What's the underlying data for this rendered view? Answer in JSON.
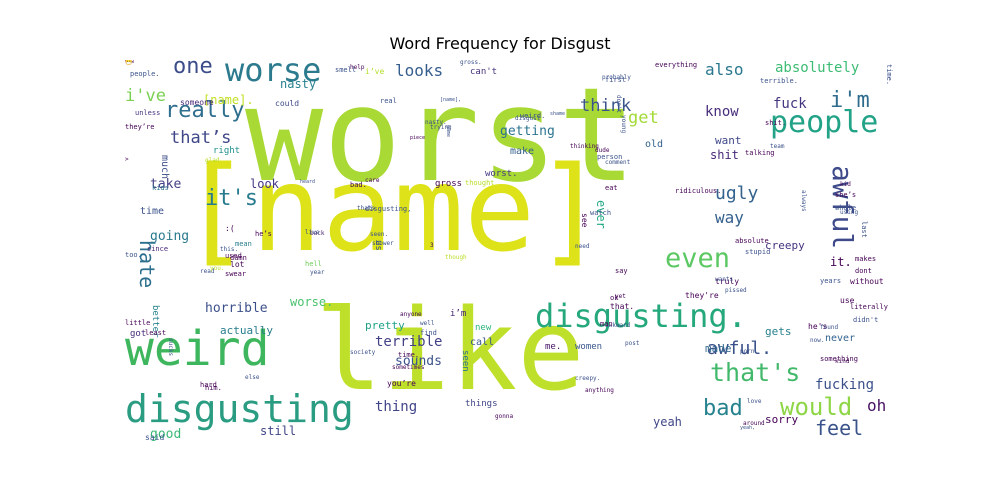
{
  "chart_data": {
    "type": "wordcloud",
    "title": "Word Frequency for Disgust",
    "words": [
      {
        "text": "worst",
        "size": 130,
        "color": "#a9d934"
      },
      {
        "text": "[name]",
        "size": 118,
        "color": "#dde318"
      },
      {
        "text": "like",
        "size": 112,
        "color": "#bfe02a"
      },
      {
        "text": "weird",
        "size": 48,
        "color": "#3db65e"
      },
      {
        "text": "disgusting",
        "size": 38,
        "color": "#2a9c82"
      },
      {
        "text": "disgusting.",
        "size": 32,
        "color": "#25a87c"
      },
      {
        "text": "worse",
        "size": 32,
        "color": "#2c7a8e"
      },
      {
        "text": "people",
        "size": 30,
        "color": "#22a286"
      },
      {
        "text": "awful",
        "size": 28,
        "color": "#3e4a89"
      },
      {
        "text": "even",
        "size": 27,
        "color": "#5cc863"
      },
      {
        "text": "that's",
        "size": 25,
        "color": "#41b86a"
      },
      {
        "text": "would",
        "size": 24,
        "color": "#8ed645"
      },
      {
        "text": "really",
        "size": 22,
        "color": "#2e6e8e"
      },
      {
        "text": "one",
        "size": 22,
        "color": "#3c4d8a"
      },
      {
        "text": "i'm",
        "size": 22,
        "color": "#2f6c8e"
      },
      {
        "text": "it's",
        "size": 22,
        "color": "#297b8e"
      },
      {
        "text": "bad",
        "size": 22,
        "color": "#26828e"
      },
      {
        "text": "feel",
        "size": 20,
        "color": "#3a538b"
      },
      {
        "text": "hate",
        "size": 20,
        "color": "#2d708e"
      },
      {
        "text": "awful.",
        "size": 18,
        "color": "#3b518b"
      },
      {
        "text": "ugly",
        "size": 18,
        "color": "#33628d"
      },
      {
        "text": "i've",
        "size": 17,
        "color": "#7ad151"
      },
      {
        "text": "that’s",
        "size": 17,
        "color": "#3f4788"
      },
      {
        "text": "looks",
        "size": 16,
        "color": "#355e8d"
      },
      {
        "text": "think",
        "size": 17,
        "color": "#3a548c"
      },
      {
        "text": "get",
        "size": 17,
        "color": "#a2da37"
      },
      {
        "text": "also",
        "size": 16,
        "color": "#2a778e"
      },
      {
        "text": "absolutely",
        "size": 14,
        "color": "#3dbc74"
      },
      {
        "text": "fuck",
        "size": 14,
        "color": "#453581"
      },
      {
        "text": "know",
        "size": 14,
        "color": "#472d7b"
      },
      {
        "text": "way",
        "size": 16,
        "color": "#34608d"
      },
      {
        "text": "oh",
        "size": 16,
        "color": "#471063"
      },
      {
        "text": "fucking",
        "size": 14,
        "color": "#3b518b"
      },
      {
        "text": "thing",
        "size": 14,
        "color": "#404588"
      },
      {
        "text": "sounds",
        "size": 13,
        "color": "#3b528b"
      },
      {
        "text": "terrible",
        "size": 14,
        "color": "#424086"
      },
      {
        "text": "getting",
        "size": 13,
        "color": "#2b748e"
      },
      {
        "text": "horrible",
        "size": 13,
        "color": "#3c508b"
      },
      {
        "text": "going",
        "size": 13,
        "color": "#29798e"
      },
      {
        "text": "take",
        "size": 13,
        "color": "#423f85"
      },
      {
        "text": "good",
        "size": 13,
        "color": "#38b977"
      },
      {
        "text": "still",
        "size": 12,
        "color": "#414487"
      },
      {
        "text": "yeah",
        "size": 12,
        "color": "#404688"
      },
      {
        "text": "sorry",
        "size": 11,
        "color": "#440154"
      },
      {
        "text": "shit",
        "size": 12,
        "color": "#482878"
      },
      {
        "text": "want",
        "size": 11,
        "color": "#3f4889"
      },
      {
        "text": "creepy",
        "size": 11,
        "color": "#46337f"
      },
      {
        "text": "actually",
        "size": 11,
        "color": "#287d8e"
      },
      {
        "text": "[name].",
        "size": 12,
        "color": "#c2df23"
      },
      {
        "text": "nasty",
        "size": 12,
        "color": "#27808e"
      },
      {
        "text": "look",
        "size": 12,
        "color": "#443983"
      },
      {
        "text": "ever",
        "size": 12,
        "color": "#22a884"
      },
      {
        "text": "worse.",
        "size": 12,
        "color": "#4ac16d"
      },
      {
        "text": "it.",
        "size": 12,
        "color": "#440154"
      },
      {
        "text": "made",
        "size": 11,
        "color": "#31688e"
      },
      {
        "text": "pretty",
        "size": 11,
        "color": "#1fa188"
      },
      {
        "text": "gets",
        "size": 11,
        "color": "#27808e"
      },
      {
        "text": "never",
        "size": 10,
        "color": "#33638d"
      },
      {
        "text": "time",
        "size": 10,
        "color": "#3b528b"
      },
      {
        "text": "make",
        "size": 10,
        "color": "#34608d"
      },
      {
        "text": "old",
        "size": 10,
        "color": "#34618d"
      },
      {
        "text": "call",
        "size": 10,
        "color": "#38588c"
      },
      {
        "text": "much",
        "size": 10,
        "color": "#3d4e8a"
      },
      {
        "text": "right",
        "size": 9,
        "color": "#21918c"
      },
      {
        "text": "gross",
        "size": 9,
        "color": "#440154"
      },
      {
        "text": "worst.",
        "size": 9,
        "color": "#453781"
      },
      {
        "text": "things",
        "size": 9,
        "color": "#404688"
      },
      {
        "text": "seen",
        "size": 9,
        "color": "#2c718e"
      },
      {
        "text": "me.",
        "size": 9,
        "color": "#471365"
      },
      {
        "text": "women",
        "size": 9,
        "color": "#39568c"
      },
      {
        "text": "new",
        "size": 9,
        "color": "#2fb47c"
      },
      {
        "text": "i’m",
        "size": 9,
        "color": "#482576"
      },
      {
        "text": "better",
        "size": 9,
        "color": "#26828e"
      },
      {
        "text": "got",
        "size": 9,
        "color": "#472d7b"
      },
      {
        "text": "us",
        "size": 9,
        "color": "#3b528b"
      },
      {
        "text": "can't",
        "size": 9,
        "color": "#46307e"
      },
      {
        "text": "someone",
        "size": 8,
        "color": "#482878"
      },
      {
        "text": "could",
        "size": 8,
        "color": "#3e4a89"
      },
      {
        "text": "smell",
        "size": 7,
        "color": "#3b528b"
      },
      {
        "text": "i’ve",
        "size": 8,
        "color": "#b5de2b"
      },
      {
        "text": "people.",
        "size": 7,
        "color": "#3b528b"
      },
      {
        "text": "unless",
        "size": 7,
        "color": "#46327e"
      },
      {
        "text": "they’re",
        "size": 7,
        "color": "#440154"
      },
      {
        "text": "kids",
        "size": 7,
        "color": "#2c728e"
      },
      {
        "text": "since",
        "size": 7,
        "color": "#482677"
      },
      {
        "text": "too.",
        "size": 7,
        "color": "#3b528b"
      },
      {
        "text": "mean",
        "size": 7,
        "color": "#287c8e"
      },
      {
        "text": ":(",
        "size": 8,
        "color": "#440154"
      },
      {
        "text": "he’s",
        "size": 7,
        "color": "#440154"
      },
      {
        "text": "lot",
        "size": 8,
        "color": "#440154"
      },
      {
        "text": "damn",
        "size": 7,
        "color": "#440154"
      },
      {
        "text": "hell",
        "size": 7,
        "color": "#6ece58"
      },
      {
        "text": "back",
        "size": 6,
        "color": "#482475"
      },
      {
        "text": "live",
        "size": 6,
        "color": "#3b528b"
      },
      {
        "text": "bad.",
        "size": 7,
        "color": "#440154"
      },
      {
        "text": "thats",
        "size": 6,
        "color": "#3b528b"
      },
      {
        "text": "seen.",
        "size": 6,
        "color": "#3b528b"
      },
      {
        "text": "disgusting,",
        "size": 7,
        "color": "#3b528b"
      },
      {
        "text": "shower",
        "size": 6,
        "color": "#3b528b"
      },
      {
        "text": "care",
        "size": 6,
        "color": "#440154"
      },
      {
        "text": "thought",
        "size": 7,
        "color": "#b8de29"
      },
      {
        "text": "glad",
        "size": 6,
        "color": "#b8de29"
      },
      {
        "text": "help",
        "size": 6,
        "color": "#440154"
      },
      {
        "text": "real",
        "size": 7,
        "color": "#3b528b"
      },
      {
        "text": "heard",
        "size": 5,
        "color": "#3b528b"
      },
      {
        "text": "trying",
        "size": 6,
        "color": "#3b528b"
      },
      {
        "text": "game",
        "size": 5,
        "color": "#3b528b"
      },
      {
        "text": "piece",
        "size": 5,
        "color": "#440154"
      },
      {
        "text": "disgust",
        "size": 6,
        "color": "#3b528b"
      },
      {
        "text": "weird.",
        "size": 7,
        "color": "#3b528b"
      },
      {
        "text": "gross.",
        "size": 6,
        "color": "#3b528b"
      },
      {
        "text": "shame",
        "size": 5,
        "color": "#3b528b"
      },
      {
        "text": "probably",
        "size": 6,
        "color": "#3b528b"
      },
      {
        "text": "first",
        "size": 7,
        "color": "#3b528b"
      },
      {
        "text": "young",
        "size": 6,
        "color": "#3b528b"
      },
      {
        "text": "thinking",
        "size": 6,
        "color": "#440154"
      },
      {
        "text": "dude",
        "size": 6,
        "color": "#440154"
      },
      {
        "text": "comment",
        "size": 6,
        "color": "#3b528b"
      },
      {
        "text": "person",
        "size": 7,
        "color": "#3b528b"
      },
      {
        "text": "eat",
        "size": 7,
        "color": "#440154"
      },
      {
        "text": "ridiculous.",
        "size": 7,
        "color": "#440154"
      },
      {
        "text": "talking",
        "size": 7,
        "color": "#440154"
      },
      {
        "text": "team",
        "size": 6,
        "color": "#3b528b"
      },
      {
        "text": "shit.",
        "size": 7,
        "color": "#440154"
      },
      {
        "text": "terrible.",
        "size": 7,
        "color": "#3b528b"
      },
      {
        "text": "everything",
        "size": 7,
        "color": "#440154"
      },
      {
        "text": "time.",
        "size": 7,
        "color": "#3b528b"
      },
      {
        "text": "kid",
        "size": 6,
        "color": "#440154"
      },
      {
        "text": "she’s",
        "size": 7,
        "color": "#440154"
      },
      {
        "text": "whole",
        "size": 7,
        "color": "#3b528b"
      },
      {
        "text": "last",
        "size": 7,
        "color": "#3b528b"
      },
      {
        "text": "makes",
        "size": 7,
        "color": "#440154"
      },
      {
        "text": "dont",
        "size": 7,
        "color": "#440154"
      },
      {
        "text": "without",
        "size": 8,
        "color": "#440154"
      },
      {
        "text": "years",
        "size": 7,
        "color": "#3b528b"
      },
      {
        "text": "use",
        "size": 8,
        "color": "#440154"
      },
      {
        "text": "literally",
        "size": 7,
        "color": "#440154"
      },
      {
        "text": "didn't",
        "size": 7,
        "color": "#3b528b"
      },
      {
        "text": "he's",
        "size": 8,
        "color": "#440154"
      },
      {
        "text": "found",
        "size": 6,
        "color": "#3b528b"
      },
      {
        "text": "now.",
        "size": 6,
        "color": "#3b528b"
      },
      {
        "text": "something",
        "size": 7,
        "color": "#440154"
      },
      {
        "text": "kind",
        "size": 6,
        "color": "#440154"
      },
      {
        "text": "using",
        "size": 6,
        "color": "#3b528b"
      },
      {
        "text": "watch",
        "size": 7,
        "color": "#3b528b"
      },
      {
        "text": "absolute",
        "size": 7,
        "color": "#440154"
      },
      {
        "text": "stupid",
        "size": 7,
        "color": "#3b528b"
      },
      {
        "text": "say",
        "size": 7,
        "color": "#440154"
      },
      {
        "text": "truly",
        "size": 8,
        "color": "#440154"
      },
      {
        "text": "wants",
        "size": 6,
        "color": "#3b528b"
      },
      {
        "text": "they're",
        "size": 8,
        "color": "#440154"
      },
      {
        "text": "pissed",
        "size": 6,
        "color": "#3b528b"
      },
      {
        "text": "yet",
        "size": 6,
        "color": "#440154"
      },
      {
        "text": "ok",
        "size": 7,
        "color": "#440154"
      },
      {
        "text": "that.",
        "size": 8,
        "color": "#440154"
      },
      {
        "text": "see",
        "size": 8,
        "color": "#440154"
      },
      {
        "text": "need",
        "size": 6,
        "color": "#3b528b"
      },
      {
        "text": "anyone",
        "size": 6,
        "color": "#440154"
      },
      {
        "text": "well",
        "size": 6,
        "color": "#3b528b"
      },
      {
        "text": "find",
        "size": 7,
        "color": "#3b528b"
      },
      {
        "text": "post",
        "size": 6,
        "color": "#3b528b"
      },
      {
        "text": "awkward",
        "size": 6,
        "color": "#3b528b"
      },
      {
        "text": "man",
        "size": 7,
        "color": "#440154"
      },
      {
        "text": "society",
        "size": 6,
        "color": "#3b528b"
      },
      {
        "text": "time.",
        "size": 7,
        "color": "#440154"
      },
      {
        "text": "sometimes",
        "size": 6,
        "color": "#440154"
      },
      {
        "text": "gonna",
        "size": 6,
        "color": "#440154"
      },
      {
        "text": "creepy.",
        "size": 6,
        "color": "#3b528b"
      },
      {
        "text": "anything",
        "size": 6,
        "color": "#440154"
      },
      {
        "text": "porn",
        "size": 6,
        "color": "#3b528b"
      },
      {
        "text": "love",
        "size": 6,
        "color": "#3b528b"
      },
      {
        "text": "around",
        "size": 6,
        "color": "#440154"
      },
      {
        "text": "yeah,",
        "size": 5,
        "color": "#3b528b"
      },
      {
        "text": "you’re",
        "size": 8,
        "color": "#440154"
      },
      {
        "text": "else",
        "size": 6,
        "color": "#3b528b"
      },
      {
        "text": "him.",
        "size": 7,
        "color": "#440154"
      },
      {
        "text": "hard",
        "size": 7,
        "color": "#440154"
      },
      {
        "text": "said",
        "size": 8,
        "color": "#3b528b"
      },
      {
        "text": "little",
        "size": 7,
        "color": "#440154"
      },
      {
        "text": "read",
        "size": 6,
        "color": "#3b528b"
      },
      {
        "text": "used",
        "size": 7,
        "color": "#440154"
      },
      {
        "text": "swear",
        "size": 7,
        "color": "#440154"
      },
      {
        "text": "least",
        "size": 7,
        "color": "#440154"
      },
      {
        "text": "sucks",
        "size": 6,
        "color": "#3b528b"
      },
      {
        "text": "year",
        "size": 6,
        "color": "#3b528b"
      },
      {
        "text": "you.",
        "size": 6,
        "color": "#b8de29"
      },
      {
        "text": "though",
        "size": 6,
        "color": "#b8de29"
      },
      {
        "text": "always",
        "size": 6,
        "color": "#3b528b"
      },
      {
        "text": "don't",
        "size": 6,
        "color": "#3b528b"
      },
      {
        "text": "[name],",
        "size": 5,
        "color": "#3b528b"
      },
      {
        "text": "this.",
        "size": 6,
        "color": "#3b528b"
      },
      {
        "text": "nasty.",
        "size": 6,
        "color": "#3b528b"
      },
      {
        "text": "3",
        "size": 6,
        "color": "#440154"
      },
      {
        "text": ">",
        "size": 6,
        "color": "#440154"
      },
      {
        "text": "wow",
        "size": 5,
        "color": "#440154"
      },
      {
        "text": "😷",
        "size": 6,
        "color": "#3b528b"
      }
    ]
  }
}
